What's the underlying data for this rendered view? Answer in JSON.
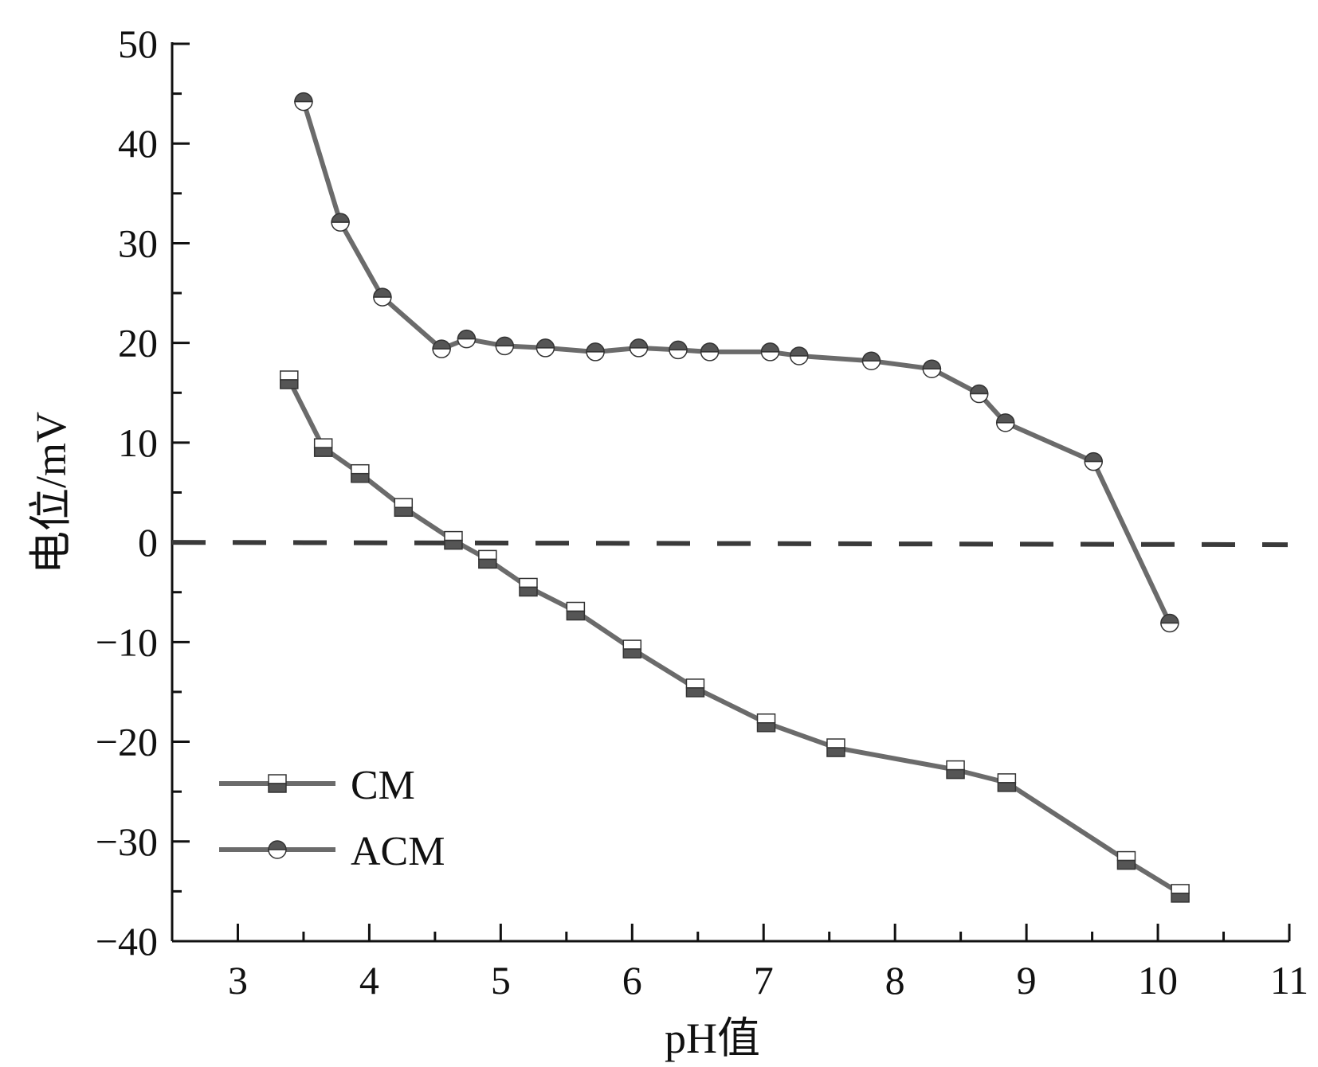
{
  "chart_data": {
    "type": "line",
    "title": "",
    "xlabel": "pH值",
    "ylabel": "电位/mV",
    "xlim": [
      2.5,
      11
    ],
    "ylim": [
      -40,
      50
    ],
    "xticks": [
      3,
      4,
      5,
      6,
      7,
      8,
      9,
      10,
      11
    ],
    "yticks": [
      -40,
      -30,
      -20,
      -10,
      0,
      10,
      20,
      30,
      40,
      50
    ],
    "ytick_labels": [
      "−40",
      "−30",
      "−20",
      "−10",
      "0",
      "10",
      "20",
      "30",
      "40",
      "50"
    ],
    "grid": false,
    "legend_position": "bottom-left",
    "reference_line": {
      "y": 0,
      "style": "dashed"
    },
    "colors": {
      "line": "#6b6b6b",
      "marker_dark": "#555555",
      "marker_light": "#ffffff",
      "axis": "#111111",
      "ref": "#3a3a3a"
    },
    "series": [
      {
        "name": "CM",
        "marker": "square",
        "x": [
          3.39,
          3.65,
          3.93,
          4.26,
          4.64,
          4.9,
          5.21,
          5.57,
          6.0,
          6.48,
          7.02,
          7.55,
          8.46,
          8.85,
          9.76,
          10.17
        ],
        "y": [
          16.3,
          9.5,
          6.9,
          3.5,
          0.2,
          -1.7,
          -4.5,
          -6.9,
          -10.7,
          -14.6,
          -18.1,
          -20.6,
          -22.8,
          -24.1,
          -31.9,
          -35.2
        ]
      },
      {
        "name": "ACM",
        "marker": "circle",
        "x": [
          3.5,
          3.78,
          4.1,
          4.55,
          4.74,
          5.03,
          5.34,
          5.72,
          6.05,
          6.35,
          6.59,
          7.05,
          7.27,
          7.82,
          8.28,
          8.64,
          8.84,
          9.51,
          10.09
        ],
        "y": [
          44.2,
          32.1,
          24.6,
          19.4,
          20.4,
          19.7,
          19.5,
          19.1,
          19.5,
          19.3,
          19.1,
          19.1,
          18.7,
          18.2,
          17.4,
          14.9,
          12.0,
          8.1,
          -8.1
        ]
      }
    ]
  }
}
